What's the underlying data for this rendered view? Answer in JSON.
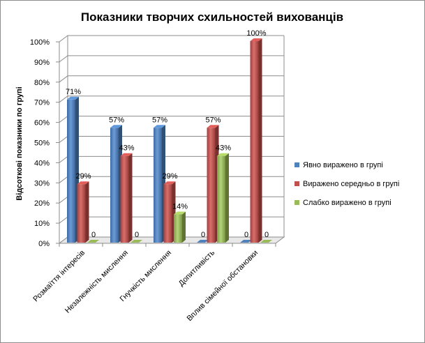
{
  "chart_data": {
    "type": "bar",
    "title": "Показники творчих схильностей вихованців",
    "ylabel": "Відсоткові показники по групі",
    "xlabel": "",
    "ylim": [
      0,
      100
    ],
    "y_ticks": [
      "0%",
      "10%",
      "20%",
      "30%",
      "40%",
      "50%",
      "60%",
      "70%",
      "80%",
      "90%",
      "100%"
    ],
    "grid": true,
    "legend_position": "right",
    "categories": [
      "Розмаїття інтересів",
      "Незалежність мислення",
      "Гнучкість мислення",
      "Допитливість",
      "Вплив сімейної обстановки"
    ],
    "series": [
      {
        "name": "Явно виражено в групі",
        "color": "#4f81bd",
        "values": [
          71,
          57,
          57,
          0,
          0
        ],
        "labels": [
          "71%",
          "57%",
          "57%",
          "0",
          "0"
        ]
      },
      {
        "name": "Виражено середньо  в групі",
        "color": "#c0504d",
        "values": [
          29,
          43,
          29,
          57,
          100
        ],
        "labels": [
          "29%",
          "43%",
          "29%",
          "57%",
          "100%"
        ]
      },
      {
        "name": "Слабко виражено в групі",
        "color": "#9bbb59",
        "values": [
          0,
          0,
          14,
          43,
          0
        ],
        "labels": [
          "0",
          "0",
          "14%",
          "43%",
          "0"
        ]
      }
    ]
  }
}
